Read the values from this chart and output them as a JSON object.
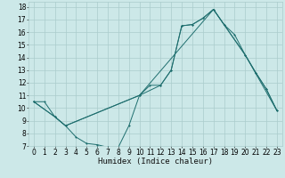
{
  "xlabel": "Humidex (Indice chaleur)",
  "bg_color": "#cce8e8",
  "line_color": "#1e6e6e",
  "grid_color": "#aacccc",
  "xlim": [
    -0.5,
    23.5
  ],
  "ylim": [
    7,
    18.4
  ],
  "xticks": [
    0,
    1,
    2,
    3,
    4,
    5,
    6,
    7,
    8,
    9,
    10,
    11,
    12,
    13,
    14,
    15,
    16,
    17,
    18,
    19,
    20,
    21,
    22,
    23
  ],
  "yticks": [
    7,
    8,
    9,
    10,
    11,
    12,
    13,
    14,
    15,
    16,
    17,
    18
  ],
  "line1_x": [
    0,
    1,
    2,
    3,
    4,
    5,
    6,
    7,
    8,
    9,
    10,
    11,
    12,
    13,
    14,
    15,
    16,
    17,
    18,
    19,
    20,
    21,
    22,
    23
  ],
  "line1_y": [
    10.5,
    10.5,
    9.3,
    8.6,
    7.7,
    7.2,
    7.1,
    6.9,
    6.9,
    8.6,
    11.0,
    11.8,
    11.8,
    13.0,
    16.5,
    16.6,
    17.1,
    17.8,
    16.6,
    15.8,
    14.2,
    12.8,
    11.5,
    9.8
  ],
  "line2_x": [
    0,
    2,
    3,
    10,
    12,
    13,
    14,
    15,
    16,
    17,
    18,
    20,
    21,
    22,
    23
  ],
  "line2_y": [
    10.5,
    9.3,
    8.6,
    11.0,
    11.8,
    13.0,
    16.5,
    16.6,
    17.1,
    17.8,
    16.6,
    14.2,
    12.8,
    11.5,
    9.8
  ],
  "line3_x": [
    0,
    2,
    3,
    10,
    17,
    20,
    23
  ],
  "line3_y": [
    10.5,
    9.3,
    8.6,
    11.0,
    17.8,
    14.2,
    9.8
  ],
  "xlabel_fontsize": 6.5,
  "tick_fontsize": 5.5
}
